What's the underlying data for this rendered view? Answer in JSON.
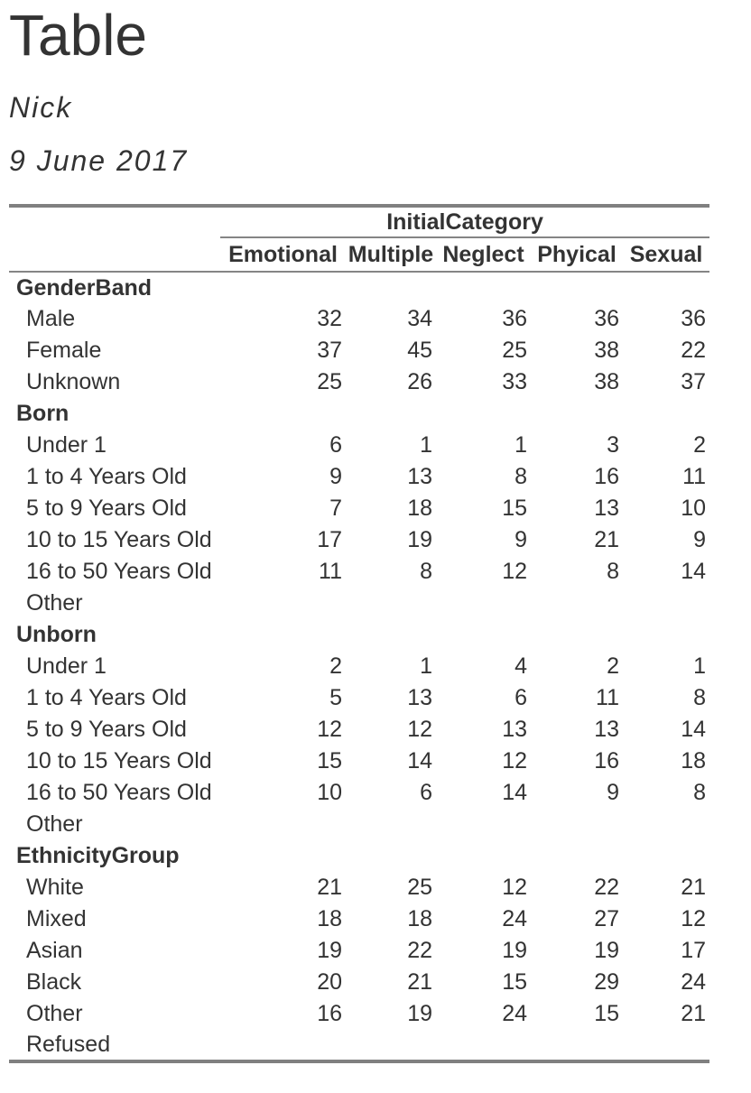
{
  "page": {
    "title": "Table",
    "author": "Nick",
    "date": "9 June 2017"
  },
  "colors": {
    "text": "#333333",
    "rule_heavy": "#808080",
    "rule_light": "#858585",
    "background": "#ffffff"
  },
  "table": {
    "spanner": "InitialCategory",
    "columns": [
      "Emotional",
      "Multiple",
      "Neglect",
      "Phyical",
      "Sexual"
    ],
    "groups": [
      {
        "label": "GenderBand",
        "rows": [
          {
            "label": "Male",
            "values": [
              "32",
              "34",
              "36",
              "36",
              "36"
            ]
          },
          {
            "label": "Female",
            "values": [
              "37",
              "45",
              "25",
              "38",
              "22"
            ]
          },
          {
            "label": "Unknown",
            "values": [
              "25",
              "26",
              "33",
              "38",
              "37"
            ]
          }
        ]
      },
      {
        "label": "Born",
        "rows": [
          {
            "label": "Under 1",
            "values": [
              "6",
              "1",
              "1",
              "3",
              "2"
            ]
          },
          {
            "label": "1 to 4 Years Old",
            "values": [
              "9",
              "13",
              "8",
              "16",
              "11"
            ]
          },
          {
            "label": "5 to 9 Years Old",
            "values": [
              "7",
              "18",
              "15",
              "13",
              "10"
            ]
          },
          {
            "label": "10 to 15 Years Old",
            "values": [
              "17",
              "19",
              "9",
              "21",
              "9"
            ]
          },
          {
            "label": "16 to 50 Years Old",
            "values": [
              "11",
              "8",
              "12",
              "8",
              "14"
            ]
          },
          {
            "label": "Other",
            "values": [
              "",
              "",
              "",
              "",
              ""
            ]
          }
        ]
      },
      {
        "label": "Unborn",
        "rows": [
          {
            "label": "Under 1",
            "values": [
              "2",
              "1",
              "4",
              "2",
              "1"
            ]
          },
          {
            "label": "1 to 4 Years Old",
            "values": [
              "5",
              "13",
              "6",
              "11",
              "8"
            ]
          },
          {
            "label": "5 to 9 Years Old",
            "values": [
              "12",
              "12",
              "13",
              "13",
              "14"
            ]
          },
          {
            "label": "10 to 15 Years Old",
            "values": [
              "15",
              "14",
              "12",
              "16",
              "18"
            ]
          },
          {
            "label": "16 to 50 Years Old",
            "values": [
              "10",
              "6",
              "14",
              "9",
              "8"
            ]
          },
          {
            "label": "Other",
            "values": [
              "",
              "",
              "",
              "",
              ""
            ]
          }
        ]
      },
      {
        "label": "EthnicityGroup",
        "rows": [
          {
            "label": "White",
            "values": [
              "21",
              "25",
              "12",
              "22",
              "21"
            ]
          },
          {
            "label": "Mixed",
            "values": [
              "18",
              "18",
              "24",
              "27",
              "12"
            ]
          },
          {
            "label": "Asian",
            "values": [
              "19",
              "22",
              "19",
              "19",
              "17"
            ]
          },
          {
            "label": "Black",
            "values": [
              "20",
              "21",
              "15",
              "29",
              "24"
            ]
          },
          {
            "label": "Other",
            "values": [
              "16",
              "19",
              "24",
              "15",
              "21"
            ]
          },
          {
            "label": "Refused",
            "values": [
              "",
              "",
              "",
              "",
              ""
            ]
          }
        ]
      }
    ]
  }
}
